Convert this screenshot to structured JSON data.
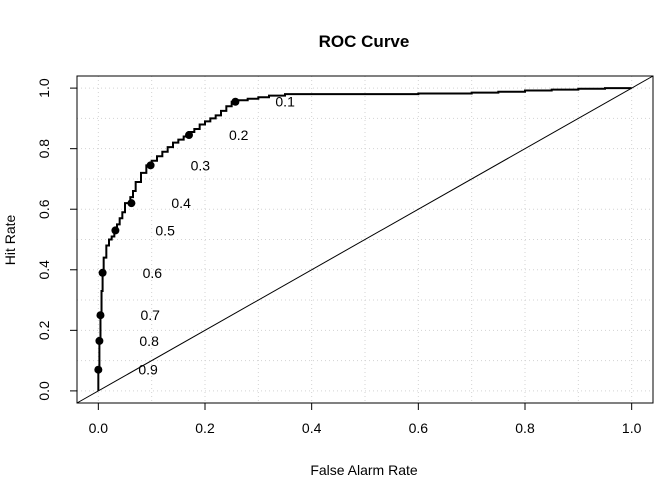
{
  "chart_data": {
    "type": "line",
    "title": "ROC Curve",
    "xlabel": "False Alarm Rate",
    "ylabel": "Hit Rate",
    "xlim": [
      -0.04,
      1.04
    ],
    "ylim": [
      -0.04,
      1.04
    ],
    "xticks": [
      0,
      0.2,
      0.4,
      0.6,
      0.8,
      1
    ],
    "xtick_labels": [
      "0.0",
      "0.2",
      "0.4",
      "0.6",
      "0.8",
      "1.0"
    ],
    "yticks": [
      0,
      0.2,
      0.4,
      0.6,
      0.8,
      1
    ],
    "ytick_labels": [
      "0.0",
      "0.2",
      "0.4",
      "0.6",
      "0.8",
      "1.0"
    ],
    "grid": true,
    "series": [
      {
        "x": [
          0,
          0,
          0.002,
          0.002,
          0.004,
          0.004,
          0.006,
          0.006,
          0.008,
          0.008,
          0.01,
          0.01,
          0.015,
          0.015,
          0.02,
          0.02,
          0.025,
          0.025,
          0.03,
          0.03,
          0.035,
          0.035,
          0.04,
          0.04,
          0.045,
          0.045,
          0.05,
          0.05,
          0.06,
          0.06,
          0.065,
          0.065,
          0.07,
          0.07,
          0.08,
          0.08,
          0.09,
          0.09,
          0.1,
          0.1,
          0.11,
          0.11,
          0.12,
          0.12,
          0.13,
          0.13,
          0.14,
          0.14,
          0.15,
          0.15,
          0.16,
          0.16,
          0.17,
          0.17,
          0.18,
          0.18,
          0.19,
          0.19,
          0.2,
          0.2,
          0.21,
          0.21,
          0.22,
          0.22,
          0.23,
          0.23,
          0.24,
          0.24,
          0.25,
          0.25,
          0.26,
          0.26,
          0.28,
          0.28,
          0.3,
          0.3,
          0.32,
          0.32,
          0.35,
          0.35,
          0.4,
          0.4,
          0.5,
          0.5,
          0.6,
          0.6,
          0.7,
          0.7,
          0.75,
          0.75,
          0.8,
          0.8,
          0.85,
          0.85,
          0.9,
          0.9,
          0.95,
          0.95,
          1
        ],
        "y": [
          0,
          0.07,
          0.07,
          0.17,
          0.17,
          0.25,
          0.25,
          0.33,
          0.33,
          0.39,
          0.39,
          0.44,
          0.44,
          0.48,
          0.48,
          0.5,
          0.5,
          0.51,
          0.51,
          0.53,
          0.53,
          0.55,
          0.55,
          0.57,
          0.57,
          0.59,
          0.59,
          0.62,
          0.62,
          0.64,
          0.64,
          0.66,
          0.66,
          0.69,
          0.69,
          0.72,
          0.72,
          0.745,
          0.745,
          0.76,
          0.76,
          0.775,
          0.775,
          0.79,
          0.79,
          0.805,
          0.805,
          0.82,
          0.82,
          0.83,
          0.83,
          0.84,
          0.84,
          0.855,
          0.855,
          0.865,
          0.865,
          0.88,
          0.88,
          0.89,
          0.89,
          0.9,
          0.9,
          0.91,
          0.91,
          0.925,
          0.925,
          0.94,
          0.94,
          0.955,
          0.955,
          0.96,
          0.96,
          0.965,
          0.965,
          0.97,
          0.97,
          0.975,
          0.975,
          0.98,
          0.98,
          0.98,
          0.98,
          0.98,
          0.98,
          0.982,
          0.982,
          0.985,
          0.985,
          0.988,
          0.988,
          0.992,
          0.992,
          0.995,
          0.995,
          0.998,
          0.998,
          1,
          1
        ]
      }
    ],
    "reference_line": {
      "x": [
        -0.04,
        1.04
      ],
      "y": [
        -0.04,
        1.04
      ]
    },
    "threshold_points": [
      {
        "x": 0.0,
        "y": 0.07,
        "label": "0.9"
      },
      {
        "x": 0.002,
        "y": 0.165,
        "label": "0.8"
      },
      {
        "x": 0.004,
        "y": 0.25,
        "label": "0.7"
      },
      {
        "x": 0.008,
        "y": 0.39,
        "label": "0.6"
      },
      {
        "x": 0.032,
        "y": 0.53,
        "label": "0.5"
      },
      {
        "x": 0.062,
        "y": 0.62,
        "label": "0.4"
      },
      {
        "x": 0.098,
        "y": 0.745,
        "label": "0.3"
      },
      {
        "x": 0.17,
        "y": 0.845,
        "label": "0.2"
      },
      {
        "x": 0.257,
        "y": 0.955,
        "label": "0.1"
      }
    ]
  }
}
